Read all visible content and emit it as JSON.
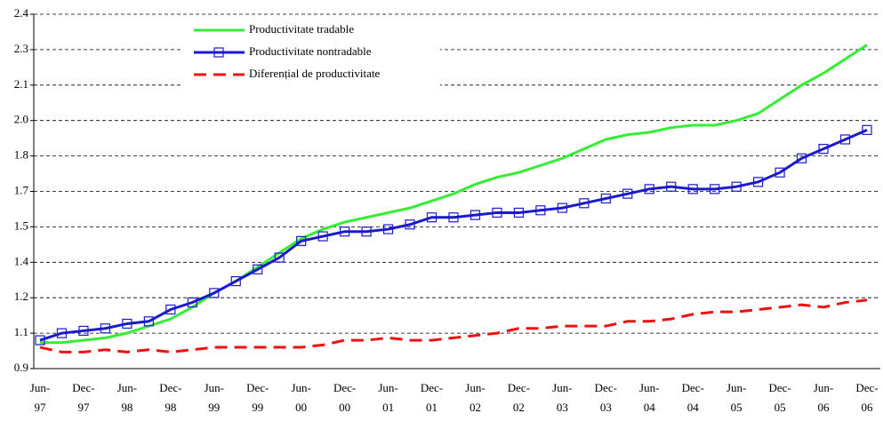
{
  "chart_data": {
    "type": "line",
    "categories": [
      "Jun-97",
      null,
      "Dec-97",
      null,
      "Jun-98",
      null,
      "Dec-98",
      null,
      "Jun-99",
      null,
      "Dec-99",
      null,
      "Jun-00",
      null,
      "Dec-00",
      null,
      "Jun-01",
      null,
      "Dec-01",
      null,
      "Jun-02",
      null,
      "Dec-02",
      null,
      "Jun-03",
      null,
      "Dec-03",
      null,
      "Jun-04",
      null,
      "Dec-04",
      null,
      "Jun-05",
      null,
      "Dec-05",
      null,
      "Jun-06",
      null,
      "Dec-06"
    ],
    "series": [
      {
        "name": "Productivitate tradable",
        "color": "#33ee33",
        "style": "solid",
        "values": [
          1.01,
          1.01,
          1.02,
          1.03,
          1.05,
          1.08,
          1.11,
          1.16,
          1.22,
          1.27,
          1.33,
          1.39,
          1.45,
          1.49,
          1.52,
          1.54,
          1.56,
          1.58,
          1.61,
          1.64,
          1.68,
          1.71,
          1.73,
          1.76,
          1.79,
          1.83,
          1.87,
          1.89,
          1.9,
          1.92,
          1.93,
          1.93,
          1.95,
          1.98,
          2.04,
          2.1,
          2.15,
          2.21,
          2.27
        ]
      },
      {
        "name": "Productivitate nontradable",
        "color": "#1a1acc",
        "style": "marker",
        "values": [
          1.02,
          1.05,
          1.06,
          1.07,
          1.09,
          1.1,
          1.15,
          1.18,
          1.22,
          1.27,
          1.32,
          1.37,
          1.44,
          1.46,
          1.48,
          1.48,
          1.49,
          1.51,
          1.54,
          1.54,
          1.55,
          1.56,
          1.56,
          1.57,
          1.58,
          1.6,
          1.62,
          1.64,
          1.66,
          1.67,
          1.66,
          1.66,
          1.67,
          1.69,
          1.73,
          1.79,
          1.83,
          1.87,
          1.91
        ]
      },
      {
        "name": "Diferențial de productivitate",
        "color": "#ee1111",
        "style": "dashed",
        "values": [
          0.99,
          0.97,
          0.97,
          0.98,
          0.97,
          0.98,
          0.97,
          0.98,
          0.99,
          0.99,
          0.99,
          0.99,
          0.99,
          1.0,
          1.02,
          1.02,
          1.03,
          1.02,
          1.02,
          1.03,
          1.04,
          1.05,
          1.07,
          1.07,
          1.08,
          1.08,
          1.08,
          1.1,
          1.1,
          1.11,
          1.13,
          1.14,
          1.14,
          1.15,
          1.16,
          1.17,
          1.16,
          1.18,
          1.19
        ]
      }
    ],
    "ylim": [
      0.9,
      2.4
    ],
    "yticks": [
      0.9,
      {
        "value": 1.05,
        "label": "1.1"
      },
      1.2,
      {
        "value": 1.35,
        "label": "1.4"
      },
      1.5,
      {
        "value": 1.65,
        "label": "1.7"
      },
      1.8,
      {
        "value": 1.95,
        "label": "2.0"
      },
      2.1,
      {
        "value": 2.25,
        "label": "2.3"
      },
      2.4
    ],
    "grid": true
  }
}
